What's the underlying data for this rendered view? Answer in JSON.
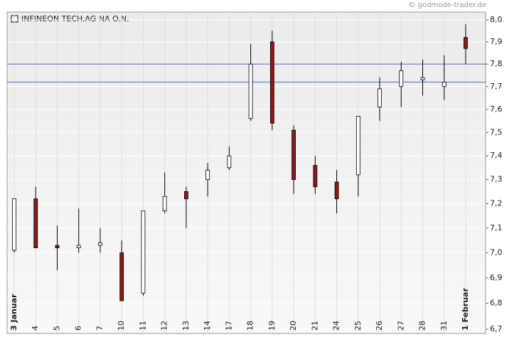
{
  "chart_data": {
    "type": "candlestick",
    "title": "INFINEON TECH.AG NA O.N.",
    "watermark": "© godmode-trader.de",
    "categories": [
      "3 Januar",
      "4",
      "5",
      "6",
      "7",
      "10",
      "11",
      "12",
      "13",
      "14",
      "17",
      "18",
      "19",
      "20",
      "21",
      "24",
      "25",
      "26",
      "27",
      "28",
      "31",
      "1 Februar"
    ],
    "open": [
      7.01,
      7.22,
      7.03,
      7.02,
      7.03,
      7.0,
      6.84,
      7.17,
      7.25,
      7.3,
      7.35,
      7.56,
      7.9,
      7.51,
      7.36,
      7.29,
      7.32,
      7.61,
      7.7,
      7.73,
      7.7,
      7.92
    ],
    "high": [
      7.22,
      7.27,
      7.11,
      7.18,
      7.1,
      7.05,
      7.17,
      7.33,
      7.27,
      7.37,
      7.44,
      7.89,
      7.95,
      7.53,
      7.4,
      7.34,
      7.57,
      7.74,
      7.81,
      7.82,
      7.84,
      7.98
    ],
    "low": [
      7.0,
      7.02,
      6.93,
      7.0,
      7.0,
      6.81,
      6.83,
      7.16,
      7.1,
      7.23,
      7.34,
      7.55,
      7.51,
      7.24,
      7.24,
      7.16,
      7.23,
      7.55,
      7.61,
      7.66,
      7.64,
      7.8
    ],
    "close": [
      7.22,
      7.02,
      7.02,
      7.03,
      7.04,
      6.81,
      7.17,
      7.23,
      7.22,
      7.34,
      7.4,
      7.8,
      7.54,
      7.3,
      7.27,
      7.22,
      7.57,
      7.69,
      7.77,
      7.74,
      7.72,
      7.87
    ],
    "up_color": "#ffffff",
    "down_color": "#8b1a1a",
    "hlines": [
      7.8,
      7.72
    ],
    "hline_color": "#5560c8",
    "log_scale": true,
    "grid": true,
    "ylim": [
      6.7,
      8.0
    ],
    "yticks": [
      {
        "value": 6.7,
        "label": "6,7"
      },
      {
        "value": 6.8,
        "label": "6,8"
      },
      {
        "value": 6.9,
        "label": "6,9"
      },
      {
        "value": 7.0,
        "label": "7,0"
      },
      {
        "value": 7.1,
        "label": "7,1"
      },
      {
        "value": 7.2,
        "label": "7,2"
      },
      {
        "value": 7.3,
        "label": "7,3"
      },
      {
        "value": 7.4,
        "label": "7,4"
      },
      {
        "value": 7.5,
        "label": "7,5"
      },
      {
        "value": 7.6,
        "label": "7,6"
      },
      {
        "value": 7.7,
        "label": "7,7"
      },
      {
        "value": 7.8,
        "label": "7,8"
      },
      {
        "value": 7.9,
        "label": "7,9"
      },
      {
        "value": 8.0,
        "label": "8,0"
      }
    ]
  }
}
